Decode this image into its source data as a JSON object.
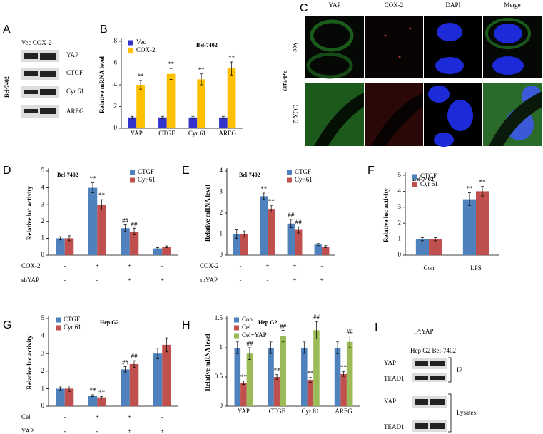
{
  "panels": {
    "A": {
      "label": "A",
      "columns": "Vec COX-2",
      "cell": "Bel-7402",
      "rows": [
        "YAP",
        "CTGF",
        "Cyr 61",
        "AREG"
      ]
    },
    "C": {
      "label": "C",
      "columns": [
        "YAP",
        "COX-2",
        "DAPI",
        "Merge"
      ],
      "rows": [
        "Vec",
        "COX-2"
      ],
      "cell": "Bel-7402"
    },
    "I": {
      "label": "I",
      "title": "IP:YAP",
      "columns": "Hep G2 Bel-7402",
      "rows": [
        "YAP",
        "TEAD1",
        "YAP",
        "TEAD1"
      ],
      "groups": [
        "IP",
        "Lysates"
      ]
    }
  },
  "chart_data": [
    {
      "type": "bar",
      "label": "B",
      "title": "Bel-7402",
      "ylabel": "Relative mRNA level",
      "categories": [
        "YAP",
        "CTGF",
        "Cyr 61",
        "AREG"
      ],
      "series": [
        {
          "name": "Vec",
          "color": "#3333cc",
          "values": [
            1,
            1,
            1,
            1
          ],
          "errors": [
            0.1,
            0.1,
            0.1,
            0.1
          ]
        },
        {
          "name": "COX-2",
          "color": "#ffc000",
          "values": [
            4.0,
            5.0,
            4.5,
            5.5
          ],
          "errors": [
            0.4,
            0.5,
            0.5,
            0.6
          ],
          "annotations": [
            "**",
            "**",
            "**",
            "**"
          ]
        }
      ],
      "ylim": [
        0,
        8
      ],
      "yticks": [
        0,
        2,
        4,
        6,
        8
      ],
      "legend": "upper left"
    },
    {
      "type": "bar",
      "label": "D",
      "title": "Bel-7402",
      "ylabel": "Relative luc activity",
      "categories": [
        null,
        null,
        null,
        null
      ],
      "conditions": [
        {
          "name": "COX-2",
          "values": [
            "-",
            "+",
            "+",
            "-"
          ]
        },
        {
          "name": "shYAP",
          "values": [
            "-",
            "-",
            "+",
            "+"
          ]
        }
      ],
      "series": [
        {
          "name": "CTGF",
          "color": "#4f81bd",
          "values": [
            1.0,
            4.0,
            1.6,
            0.4
          ],
          "errors": [
            0.1,
            0.3,
            0.2,
            0.05
          ],
          "annotations": [
            null,
            "**",
            "##",
            null
          ]
        },
        {
          "name": "Cyr 61",
          "color": "#c0504d",
          "values": [
            1.0,
            3.0,
            1.4,
            0.5
          ],
          "errors": [
            0.15,
            0.3,
            0.2,
            0.05
          ],
          "annotations": [
            null,
            "**",
            "##",
            null
          ]
        }
      ],
      "ylim": [
        0,
        5
      ],
      "yticks": [
        0,
        1,
        2,
        3,
        4,
        5
      ],
      "legend": "upper right"
    },
    {
      "type": "bar",
      "label": "E",
      "title": "Bel-7402",
      "ylabel": "Relative mRNA level",
      "categories": [
        null,
        null,
        null,
        null
      ],
      "conditions": [
        {
          "name": "COX-2",
          "values": [
            "-",
            "+",
            "+",
            "-"
          ]
        },
        {
          "name": "shYAP",
          "values": [
            "-",
            "-",
            "+",
            "+"
          ]
        }
      ],
      "series": [
        {
          "name": "CTGF",
          "color": "#4f81bd",
          "values": [
            1.0,
            2.8,
            1.5,
            0.5
          ],
          "errors": [
            0.2,
            0.15,
            0.2,
            0.05
          ],
          "annotations": [
            null,
            "**",
            "##",
            null
          ]
        },
        {
          "name": "Cyr 61",
          "color": "#c0504d",
          "values": [
            1.0,
            2.2,
            1.2,
            0.4
          ],
          "errors": [
            0.15,
            0.15,
            0.15,
            0.05
          ],
          "annotations": [
            null,
            "**",
            "##",
            null
          ]
        }
      ],
      "ylim": [
        0,
        4
      ],
      "yticks": [
        0,
        1,
        2,
        3,
        4
      ],
      "legend": "upper right"
    },
    {
      "type": "bar",
      "label": "F",
      "title": "Bel-7402",
      "ylabel": "Relative luc activity",
      "categories": [
        "Con",
        "LPS"
      ],
      "series": [
        {
          "name": "CTGF",
          "color": "#4f81bd",
          "values": [
            1.0,
            3.5
          ],
          "errors": [
            0.1,
            0.4
          ],
          "annotations": [
            null,
            "**"
          ]
        },
        {
          "name": "Cyr 61",
          "color": "#c0504d",
          "values": [
            1.0,
            4.0
          ],
          "errors": [
            0.1,
            0.3
          ],
          "annotations": [
            null,
            "**"
          ]
        }
      ],
      "ylim": [
        0,
        5
      ],
      "yticks": [
        0,
        1,
        2,
        3,
        4,
        5
      ],
      "legend": "upper left"
    },
    {
      "type": "bar",
      "label": "G",
      "title": "Hep G2",
      "ylabel": "Relative luc activity",
      "categories": [
        null,
        null,
        null,
        null
      ],
      "conditions": [
        {
          "name": "Cel",
          "values": [
            "-",
            "+",
            "+",
            "-"
          ]
        },
        {
          "name": "YAP",
          "values": [
            "-",
            "-",
            "+",
            "+"
          ]
        }
      ],
      "series": [
        {
          "name": "CTGF",
          "color": "#4f81bd",
          "values": [
            1.0,
            0.6,
            2.1,
            3.0
          ],
          "errors": [
            0.1,
            0.05,
            0.15,
            0.3
          ],
          "annotations": [
            null,
            "**",
            "##",
            null
          ]
        },
        {
          "name": "Cyr 61",
          "color": "#c0504d",
          "values": [
            1.0,
            0.5,
            2.4,
            3.5
          ],
          "errors": [
            0.15,
            0.05,
            0.2,
            0.4
          ],
          "annotations": [
            null,
            "**",
            "##",
            null
          ]
        }
      ],
      "ylim": [
        0,
        5
      ],
      "yticks": [
        0,
        1,
        2,
        3,
        4,
        5
      ],
      "legend": "upper left"
    },
    {
      "type": "bar",
      "label": "H",
      "title": "Hep G2",
      "ylabel": "Relative mRNA level",
      "categories": [
        "YAP",
        "CTGF",
        "Cyr 61",
        "AREG"
      ],
      "series": [
        {
          "name": "Con",
          "color": "#4f81bd",
          "values": [
            1,
            1,
            1,
            1
          ],
          "errors": [
            0.1,
            0.1,
            0.1,
            0.1
          ]
        },
        {
          "name": "Cel",
          "color": "#c0504d",
          "values": [
            0.4,
            0.5,
            0.45,
            0.55
          ],
          "errors": [
            0.03,
            0.04,
            0.04,
            0.04
          ],
          "annotations": [
            "**",
            "**",
            "**",
            "**"
          ]
        },
        {
          "name": "Cel+YAP",
          "color": "#9bbb59",
          "values": [
            0.9,
            1.2,
            1.3,
            1.1
          ],
          "errors": [
            0.1,
            0.1,
            0.15,
            0.1
          ],
          "annotations": [
            "##",
            "##",
            "##",
            "##"
          ]
        }
      ],
      "ylim": [
        0,
        1.5
      ],
      "yticks": [
        0,
        0.5,
        1,
        1.5
      ],
      "legend": "upper left"
    }
  ]
}
